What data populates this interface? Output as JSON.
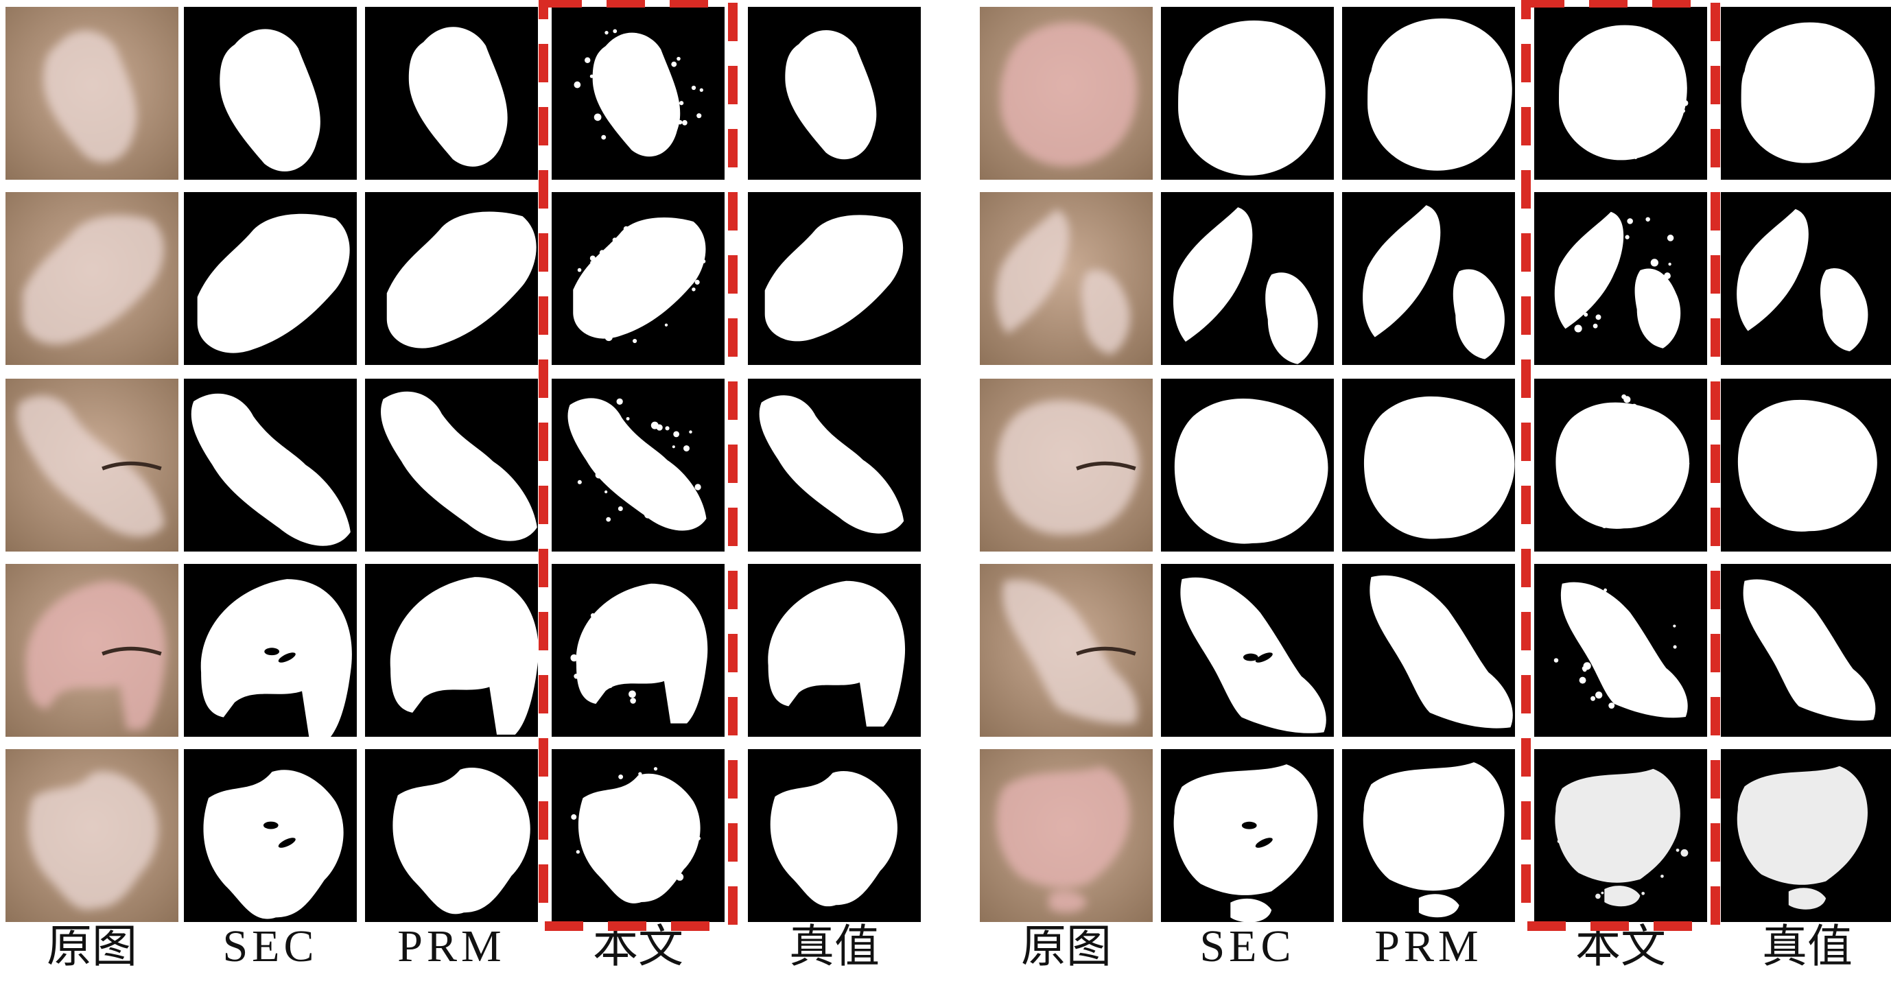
{
  "figure": {
    "panels": [
      {
        "columns": [
          "原图",
          "SEC",
          "PRM",
          "本文",
          "真值"
        ],
        "highlighted_column": "本文",
        "rows": [
          {
            "photo": "forehead-lesion"
          },
          {
            "photo": "eye-corner-lesion"
          },
          {
            "photo": "eyelid-lesion"
          },
          {
            "photo": "closed-eye-lesion"
          },
          {
            "photo": "patchy-skin-lesion"
          }
        ]
      },
      {
        "columns": [
          "原图",
          "SEC",
          "PRM",
          "本文",
          "真值"
        ],
        "highlighted_column": "本文",
        "rows": [
          {
            "photo": "cheek-pink-lesion"
          },
          {
            "photo": "jaw-lesion"
          },
          {
            "photo": "round-white-lesion"
          },
          {
            "photo": "diagonal-lesion"
          },
          {
            "photo": "spotted-lesion"
          }
        ]
      }
    ],
    "colors": {
      "mask_background": "#000000",
      "mask_foreground": "#ffffff",
      "highlight_dash": "#d92b24",
      "skin_base": "#b89a84",
      "lesion": "#e9d6d1"
    }
  }
}
